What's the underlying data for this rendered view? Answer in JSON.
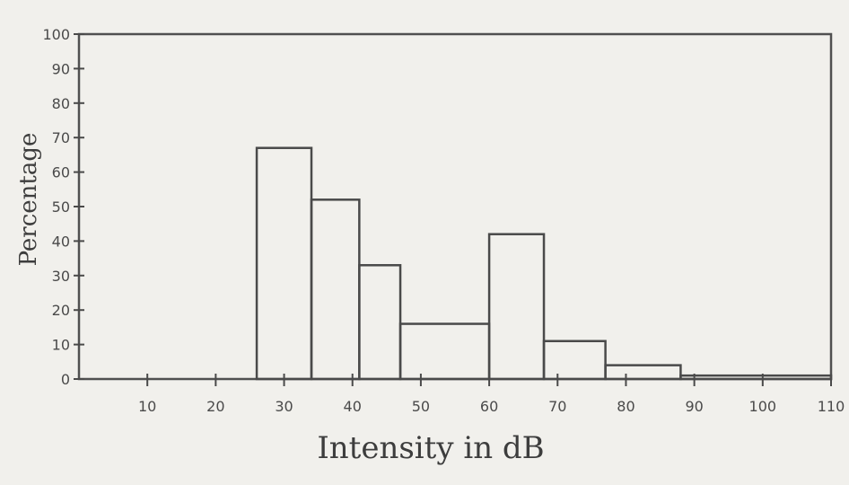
{
  "chart_data": {
    "type": "bar",
    "style": "histogram-step",
    "xlabel": "Intensity in dB",
    "ylabel": "Percentage",
    "xlim": [
      0,
      110
    ],
    "ylim": [
      0,
      100
    ],
    "x_ticks": [
      10,
      20,
      30,
      40,
      50,
      60,
      70,
      80,
      90,
      100,
      110
    ],
    "y_ticks": [
      0,
      10,
      20,
      30,
      40,
      50,
      60,
      70,
      80,
      90,
      100
    ],
    "bins": [
      {
        "x0": 26,
        "x1": 34,
        "value": 67
      },
      {
        "x0": 34,
        "x1": 41,
        "value": 52
      },
      {
        "x0": 41,
        "x1": 47,
        "value": 33
      },
      {
        "x0": 47,
        "x1": 60,
        "value": 16
      },
      {
        "x0": 60,
        "x1": 68,
        "value": 42
      },
      {
        "x0": 68,
        "x1": 77,
        "value": 11
      },
      {
        "x0": 77,
        "x1": 88,
        "value": 4
      },
      {
        "x0": 88,
        "x1": 110,
        "value": 1
      }
    ],
    "grid": false,
    "line_color": "#4a4a4a"
  }
}
